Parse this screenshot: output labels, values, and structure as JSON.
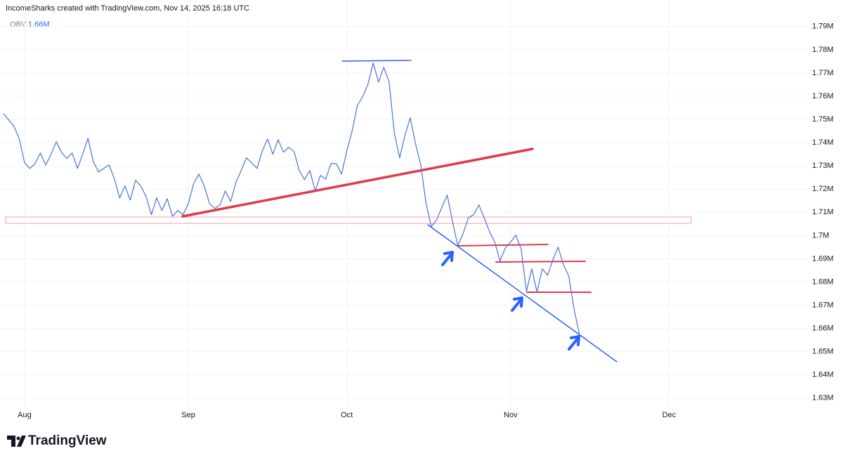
{
  "header": {
    "title": "IncomeSharks created with TradingView.com, Nov 14, 2025 16:18 UTC"
  },
  "logo": {
    "text": "TradingView"
  },
  "chart_data": {
    "type": "line",
    "legend_value": "1.66M",
    "x": [
      -4,
      -2,
      -1,
      0,
      1,
      2,
      3,
      4,
      5,
      6,
      7,
      8,
      9,
      10,
      11,
      12,
      13,
      14,
      15,
      16,
      17,
      18,
      19,
      20,
      21,
      22,
      23,
      24,
      25,
      26,
      27,
      28,
      29,
      30,
      31,
      32,
      33,
      34,
      35,
      36,
      37,
      38,
      39,
      40,
      41,
      42,
      43,
      44,
      45,
      46,
      47,
      48,
      49,
      50,
      51,
      52,
      53,
      54,
      55,
      56,
      57,
      58,
      59,
      60,
      61,
      62,
      63,
      64,
      65,
      66,
      67,
      68,
      69,
      70,
      71,
      72,
      73,
      74,
      75,
      76,
      77,
      78,
      79,
      80,
      81,
      82,
      83,
      84,
      85,
      86,
      87,
      88,
      89,
      90,
      91,
      92,
      93,
      94,
      95,
      96,
      97,
      98,
      99,
      100,
      101,
      102,
      103,
      104,
      105
    ],
    "series": [
      {
        "name": "OBV",
        "color": "#4a72d8",
        "values": [
          1752500,
          1747100,
          1741600,
          1731300,
          1728900,
          1731000,
          1735600,
          1730400,
          1735000,
          1740400,
          1735900,
          1733200,
          1735600,
          1728900,
          1735000,
          1741900,
          1731900,
          1727400,
          1728900,
          1730400,
          1724400,
          1716200,
          1721400,
          1715300,
          1723800,
          1721400,
          1716800,
          1709000,
          1716200,
          1710800,
          1715900,
          1708300,
          1710800,
          1709000,
          1713800,
          1722300,
          1726500,
          1721400,
          1713800,
          1711700,
          1713200,
          1719200,
          1714700,
          1722900,
          1728000,
          1733500,
          1731300,
          1728900,
          1736500,
          1741600,
          1735000,
          1741300,
          1735900,
          1738000,
          1736200,
          1728000,
          1724100,
          1728000,
          1719200,
          1725900,
          1724400,
          1731000,
          1731000,
          1726500,
          1736500,
          1745000,
          1756100,
          1759800,
          1765200,
          1774300,
          1766100,
          1772500,
          1766100,
          1744000,
          1733500,
          1743100,
          1750700,
          1739500,
          1730400,
          1713800,
          1703800,
          1706800,
          1712300,
          1717400,
          1706200,
          1695600,
          1700800,
          1707700,
          1709000,
          1713200,
          1707700,
          1701700,
          1697200,
          1689000,
          1694700,
          1697200,
          1700200,
          1694100,
          1676000,
          1685700,
          1675700,
          1685700,
          1682900,
          1689600,
          1695000,
          1687500,
          1682600,
          1668400,
          1657800
        ]
      }
    ],
    "xlim": [
      -4.65,
      148.27
    ],
    "xticks": [
      {
        "value": 0,
        "label": "Aug"
      },
      {
        "value": 31,
        "label": "Sep"
      },
      {
        "value": 61,
        "label": "Oct"
      },
      {
        "value": 92,
        "label": "Nov"
      },
      {
        "value": 122,
        "label": "Dec"
      }
    ],
    "ylim": [
      1626000,
      1796000
    ],
    "yticks": [
      {
        "value": 1630000,
        "label": "1.63M"
      },
      {
        "value": 1640000,
        "label": "1.64M"
      },
      {
        "value": 1650000,
        "label": "1.65M"
      },
      {
        "value": 1660000,
        "label": "1.66M"
      },
      {
        "value": 1670000,
        "label": "1.67M"
      },
      {
        "value": 1680000,
        "label": "1.68M"
      },
      {
        "value": 1690000,
        "label": "1.69M"
      },
      {
        "value": 1700000,
        "label": "1.7M"
      },
      {
        "value": 1710000,
        "label": "1.71M"
      },
      {
        "value": 1720000,
        "label": "1.72M"
      },
      {
        "value": 1730000,
        "label": "1.73M"
      },
      {
        "value": 1740000,
        "label": "1.74M"
      },
      {
        "value": 1750000,
        "label": "1.75M"
      },
      {
        "value": 1760000,
        "label": "1.76M"
      },
      {
        "value": 1770000,
        "label": "1.77M"
      },
      {
        "value": 1780000,
        "label": "1.78M"
      },
      {
        "value": 1790000,
        "label": "1.79M"
      }
    ],
    "grid": true
  }
}
